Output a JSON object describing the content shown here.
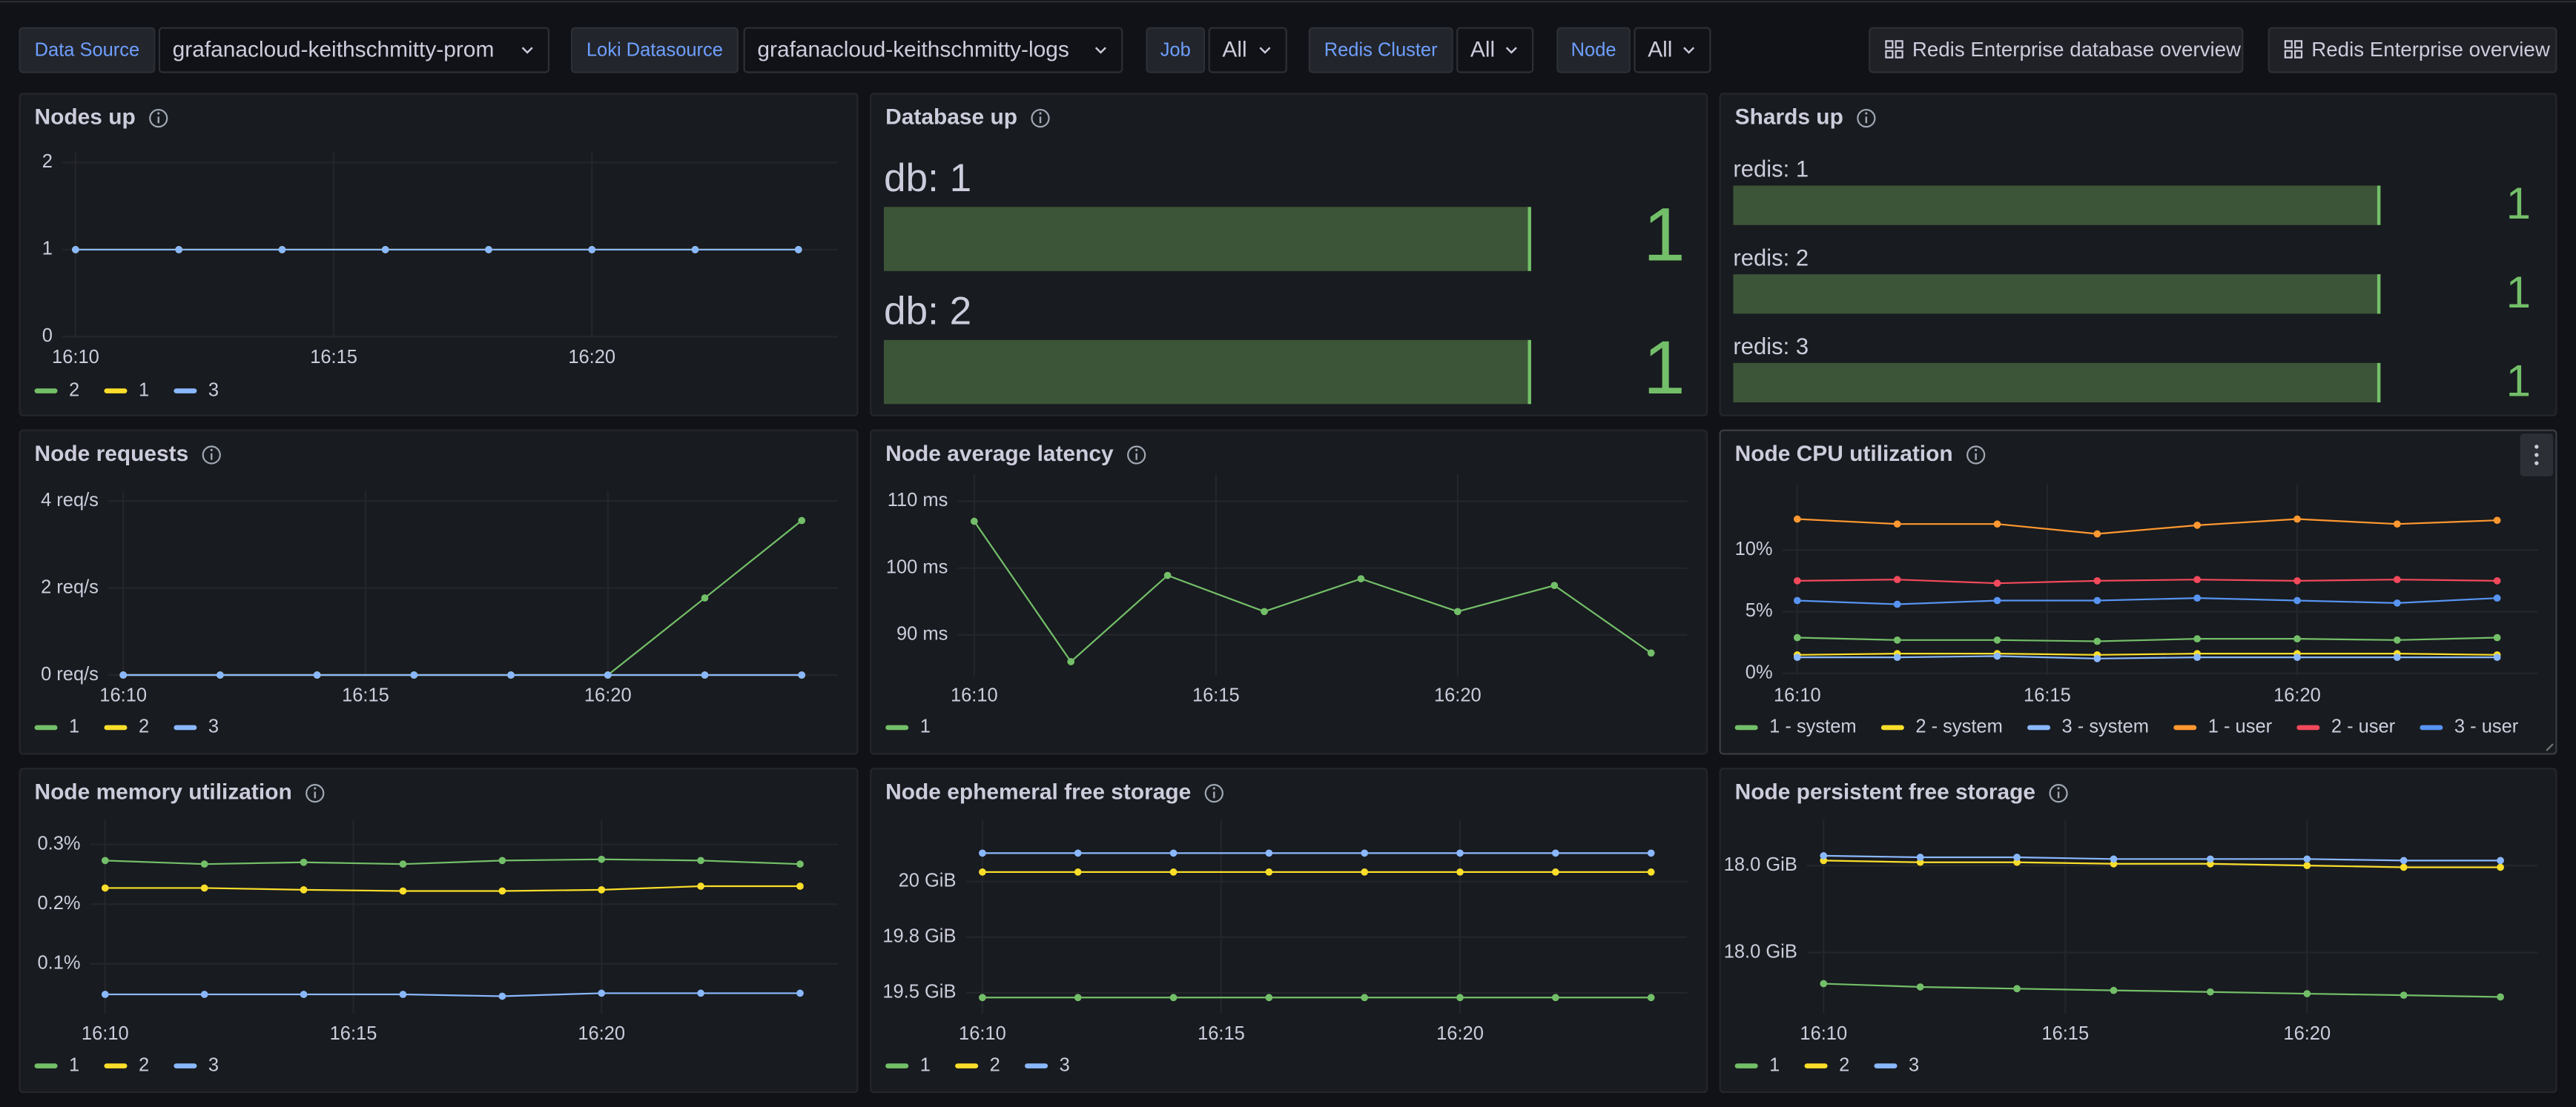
{
  "toolbar": {
    "variables": [
      {
        "label": "Data Source",
        "value": "grafanacloud-keithschmitty-prom"
      },
      {
        "label": "Loki Datasource",
        "value": "grafanacloud-keithschmitty-logs"
      },
      {
        "label": "Job",
        "value": "All"
      },
      {
        "label": "Redis Cluster",
        "value": "All"
      },
      {
        "label": "Node",
        "value": "All"
      }
    ],
    "links": [
      "Redis Enterprise database overview",
      "Redis Enterprise overview"
    ]
  },
  "chart_data": [
    {
      "type": "line",
      "title": "Nodes up",
      "x": [
        "16:10",
        "16:12",
        "16:14",
        "16:16",
        "16:18",
        "16:20",
        "16:22",
        "16:24"
      ],
      "xticks": [
        "16:10",
        "16:15",
        "16:20"
      ],
      "ylim": [
        0,
        2
      ],
      "yticks": [
        0,
        1,
        2
      ],
      "grid": true,
      "series": [
        {
          "name": "2",
          "color": "#73bf69",
          "values": [
            1,
            1,
            1,
            1,
            1,
            1,
            1,
            1
          ]
        },
        {
          "name": "1",
          "color": "#fade2a",
          "values": [
            1,
            1,
            1,
            1,
            1,
            1,
            1,
            1
          ]
        },
        {
          "name": "3",
          "color": "#8ab8ff",
          "values": [
            1,
            1,
            1,
            1,
            1,
            1,
            1,
            1
          ]
        }
      ]
    },
    {
      "type": "bargauge",
      "title": "Database up",
      "categories": [
        "db: 1",
        "db: 2"
      ],
      "values": [
        1,
        1
      ],
      "xlim": [
        0,
        1
      ],
      "color": "#73bf69"
    },
    {
      "type": "bargauge",
      "title": "Shards up",
      "categories": [
        "redis: 1",
        "redis: 2",
        "redis: 3"
      ],
      "values": [
        1,
        1,
        1
      ],
      "xlim": [
        0,
        1
      ],
      "color": "#73bf69"
    },
    {
      "type": "line",
      "title": "Node requests",
      "x": [
        "16:10",
        "16:12",
        "16:14",
        "16:16",
        "16:18",
        "16:20",
        "16:22",
        "16:24"
      ],
      "xticks": [
        "16:10",
        "16:15",
        "16:20"
      ],
      "ylim": [
        0,
        4
      ],
      "yticks": [
        {
          "value": 0,
          "label": "0 req/s"
        },
        {
          "value": 2,
          "label": "2 req/s"
        },
        {
          "value": 4,
          "label": "4 req/s"
        }
      ],
      "grid": true,
      "series": [
        {
          "name": "1",
          "color": "#73bf69",
          "values": [
            0,
            0,
            0,
            0,
            0,
            0,
            1.77,
            3.55
          ]
        },
        {
          "name": "2",
          "color": "#fade2a",
          "values": [
            0,
            0,
            0,
            0,
            0,
            0,
            0,
            0
          ]
        },
        {
          "name": "3",
          "color": "#8ab8ff",
          "values": [
            0,
            0,
            0,
            0,
            0,
            0,
            0,
            0
          ]
        }
      ]
    },
    {
      "type": "line",
      "title": "Node average latency",
      "x": [
        "16:10",
        "16:12",
        "16:14",
        "16:16",
        "16:18",
        "16:20",
        "16:22",
        "16:24"
      ],
      "xticks": [
        "16:10",
        "16:15",
        "16:20"
      ],
      "ylim": [
        84,
        112.5
      ],
      "yticks": [
        {
          "value": 90,
          "label": "90 ms"
        },
        {
          "value": 100,
          "label": "100 ms"
        },
        {
          "value": 110,
          "label": "110 ms"
        }
      ],
      "grid": true,
      "series": [
        {
          "name": "1",
          "color": "#73bf69",
          "values": [
            107.0,
            86.0,
            98.9,
            93.5,
            98.4,
            93.5,
            97.4,
            87.3
          ]
        }
      ]
    },
    {
      "type": "line",
      "title": "Node CPU utilization",
      "x": [
        "16:10",
        "16:12",
        "16:14",
        "16:16",
        "16:18",
        "16:20",
        "16:22",
        "16:24"
      ],
      "xticks": [
        "16:10",
        "16:15",
        "16:20"
      ],
      "ylim": [
        0,
        14.5
      ],
      "yticks": [
        {
          "value": 0,
          "label": "0%"
        },
        {
          "value": 5,
          "label": "5%"
        },
        {
          "value": 10,
          "label": "10%"
        }
      ],
      "grid": true,
      "series": [
        {
          "name": "1 - system",
          "color": "#73bf69",
          "values": [
            2.9,
            2.7,
            2.7,
            2.6,
            2.8,
            2.8,
            2.7,
            2.9
          ]
        },
        {
          "name": "2 - system",
          "color": "#fade2a",
          "values": [
            1.5,
            1.6,
            1.6,
            1.5,
            1.6,
            1.6,
            1.6,
            1.5
          ]
        },
        {
          "name": "3 - system",
          "color": "#8ab8ff",
          "values": [
            1.3,
            1.3,
            1.4,
            1.2,
            1.3,
            1.3,
            1.3,
            1.3
          ]
        },
        {
          "name": "1 - user",
          "color": "#ff9830",
          "values": [
            12.5,
            12.1,
            12.1,
            11.3,
            12.0,
            12.5,
            12.1,
            12.4
          ]
        },
        {
          "name": "2 - user",
          "color": "#f2495c",
          "values": [
            7.5,
            7.6,
            7.3,
            7.5,
            7.6,
            7.5,
            7.6,
            7.5
          ]
        },
        {
          "name": "3 - user",
          "color": "#5794f2",
          "values": [
            5.9,
            5.6,
            5.9,
            5.9,
            6.1,
            5.9,
            5.7,
            6.1
          ]
        }
      ]
    },
    {
      "type": "line",
      "title": "Node memory utilization",
      "x": [
        "16:10",
        "16:12",
        "16:14",
        "16:16",
        "16:18",
        "16:20",
        "16:22",
        "16:24"
      ],
      "xticks": [
        "16:10",
        "16:15",
        "16:20"
      ],
      "ylim": [
        0.02,
        0.325
      ],
      "yticks": [
        {
          "value": 0.1,
          "label": "0.1%"
        },
        {
          "value": 0.2,
          "label": "0.2%"
        },
        {
          "value": 0.3,
          "label": "0.3%"
        }
      ],
      "grid": true,
      "series": [
        {
          "name": "1",
          "color": "#73bf69",
          "values": [
            0.273,
            0.267,
            0.27,
            0.267,
            0.273,
            0.275,
            0.273,
            0.267
          ]
        },
        {
          "name": "2",
          "color": "#fade2a",
          "values": [
            0.227,
            0.227,
            0.224,
            0.222,
            0.222,
            0.224,
            0.23,
            0.23
          ]
        },
        {
          "name": "3",
          "color": "#8ab8ff",
          "values": [
            0.049,
            0.049,
            0.049,
            0.049,
            0.046,
            0.051,
            0.051,
            0.051
          ]
        }
      ]
    },
    {
      "type": "line",
      "title": "Node ephemeral free storage",
      "x": [
        "16:10",
        "16:12",
        "16:14",
        "16:16",
        "16:18",
        "16:20",
        "16:22",
        "16:24"
      ],
      "xticks": [
        "16:10",
        "16:15",
        "16:20"
      ],
      "ylim": [
        19.45,
        20.22
      ],
      "yticks": [
        {
          "value": 19.53,
          "label": "19.5 GiB"
        },
        {
          "value": 19.765,
          "label": "19.8 GiB"
        },
        {
          "value": 20,
          "label": "20 GiB"
        }
      ],
      "grid": true,
      "series": [
        {
          "name": "1",
          "color": "#73bf69",
          "values": [
            19.51,
            19.51,
            19.51,
            19.51,
            19.51,
            19.51,
            19.51,
            19.51
          ]
        },
        {
          "name": "2",
          "color": "#fade2a",
          "values": [
            20.04,
            20.04,
            20.04,
            20.04,
            20.04,
            20.04,
            20.04,
            20.04
          ]
        },
        {
          "name": "3",
          "color": "#8ab8ff",
          "values": [
            20.12,
            20.12,
            20.12,
            20.12,
            20.12,
            20.12,
            20.12,
            20.12
          ]
        }
      ]
    },
    {
      "type": "line",
      "title": "Node persistent free storage",
      "x": [
        "16:10",
        "16:12",
        "16:14",
        "16:16",
        "16:18",
        "16:20",
        "16:22",
        "16:24"
      ],
      "xticks": [
        "16:10",
        "16:15",
        "16:20"
      ],
      "ylim": [
        17.9528,
        18.0366
      ],
      "yticks": [
        {
          "value": 17.98,
          "label": "18.0 GiB"
        },
        {
          "value": 18.02,
          "label": "18.0 GiB"
        }
      ],
      "grid": true,
      "series": [
        {
          "name": "1",
          "color": "#73bf69",
          "values": [
            17.9657,
            17.9642,
            17.9634,
            17.9626,
            17.9619,
            17.9611,
            17.9604,
            17.9596
          ]
        },
        {
          "name": "2",
          "color": "#fade2a",
          "values": [
            18.0223,
            18.0215,
            18.0215,
            18.0208,
            18.0208,
            18.02,
            18.0192,
            18.0192
          ]
        },
        {
          "name": "3",
          "color": "#8ab8ff",
          "values": [
            18.0245,
            18.0238,
            18.0238,
            18.023,
            18.023,
            18.023,
            18.0223,
            18.0223
          ]
        }
      ]
    }
  ]
}
